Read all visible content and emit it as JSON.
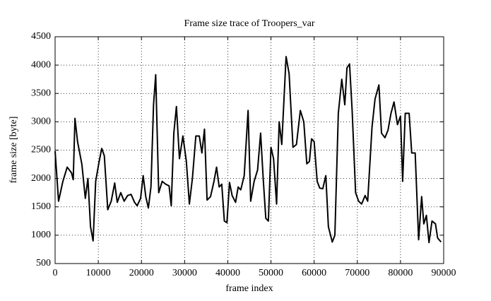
{
  "chart_data": {
    "type": "line",
    "title": "Frame size trace of Troopers_var",
    "x_label": "frame index",
    "y_label": "frame size [byte]",
    "xlim": [
      0,
      90000
    ],
    "xticks": [
      0,
      10000,
      20000,
      30000,
      40000,
      50000,
      60000,
      70000,
      80000,
      90000
    ],
    "ylim": [
      500,
      4500
    ],
    "yticks": [
      500,
      1000,
      1500,
      2000,
      2500,
      3000,
      3500,
      4000,
      4500
    ],
    "grid": true,
    "series": [
      {
        "name": "Troopers_var",
        "color": "#000000",
        "x": [
          0,
          800,
          1800,
          2800,
          3800,
          4200,
          4600,
          5200,
          6200,
          7000,
          7600,
          8200,
          8800,
          9400,
          10200,
          10800,
          11400,
          12200,
          13000,
          13800,
          14400,
          15200,
          16000,
          16800,
          17600,
          18400,
          19000,
          19800,
          20400,
          21000,
          21600,
          22200,
          22800,
          23300,
          24000,
          24800,
          25600,
          26400,
          26900,
          27500,
          28100,
          28800,
          29600,
          30400,
          31100,
          31800,
          32600,
          33400,
          34000,
          34600,
          35200,
          36000,
          36800,
          37400,
          38000,
          38600,
          39200,
          39800,
          40400,
          41000,
          41800,
          42400,
          43000,
          43800,
          44700,
          45300,
          46100,
          46900,
          47600,
          48200,
          48800,
          49400,
          50000,
          50600,
          51300,
          51900,
          52500,
          53500,
          54200,
          55100,
          55900,
          56800,
          57600,
          58300,
          58900,
          59400,
          60000,
          60700,
          61300,
          62000,
          62700,
          63300,
          64200,
          64800,
          65600,
          66400,
          67100,
          67600,
          68200,
          68800,
          69600,
          70300,
          71000,
          71800,
          72400,
          73400,
          74100,
          75000,
          75600,
          76400,
          77100,
          77800,
          78500,
          79300,
          80000,
          80500,
          81100,
          82000,
          82600,
          83400,
          84200,
          84900,
          85400,
          86000,
          86600,
          87300,
          88100,
          88600,
          89400
        ],
        "values": [
          2480,
          1600,
          1950,
          2200,
          2100,
          1980,
          3060,
          2650,
          2250,
          1650,
          2000,
          1150,
          900,
          1950,
          2300,
          2530,
          2400,
          1450,
          1600,
          1920,
          1580,
          1750,
          1600,
          1700,
          1720,
          1580,
          1520,
          1650,
          2050,
          1680,
          1480,
          1850,
          3300,
          3830,
          1750,
          1950,
          1900,
          1870,
          1520,
          2800,
          3270,
          2350,
          2750,
          2300,
          1550,
          2000,
          2750,
          2750,
          2450,
          2870,
          1620,
          1680,
          1950,
          2200,
          1850,
          1900,
          1250,
          1220,
          1930,
          1700,
          1580,
          1850,
          1800,
          2050,
          3200,
          1600,
          1950,
          2150,
          2800,
          2000,
          1300,
          1250,
          2550,
          2350,
          1550,
          3000,
          2600,
          4150,
          3850,
          2550,
          2600,
          3200,
          3000,
          2260,
          2300,
          2700,
          2650,
          1950,
          1830,
          1820,
          2050,
          1150,
          880,
          1000,
          3150,
          3750,
          3300,
          3950,
          4020,
          3200,
          1750,
          1600,
          1550,
          1700,
          1600,
          2900,
          3400,
          3650,
          2800,
          2720,
          2850,
          3150,
          3350,
          2950,
          3100,
          1950,
          3150,
          3150,
          2450,
          2450,
          920,
          1680,
          1200,
          1350,
          870,
          1250,
          1200,
          950,
          880
        ]
      }
    ]
  }
}
